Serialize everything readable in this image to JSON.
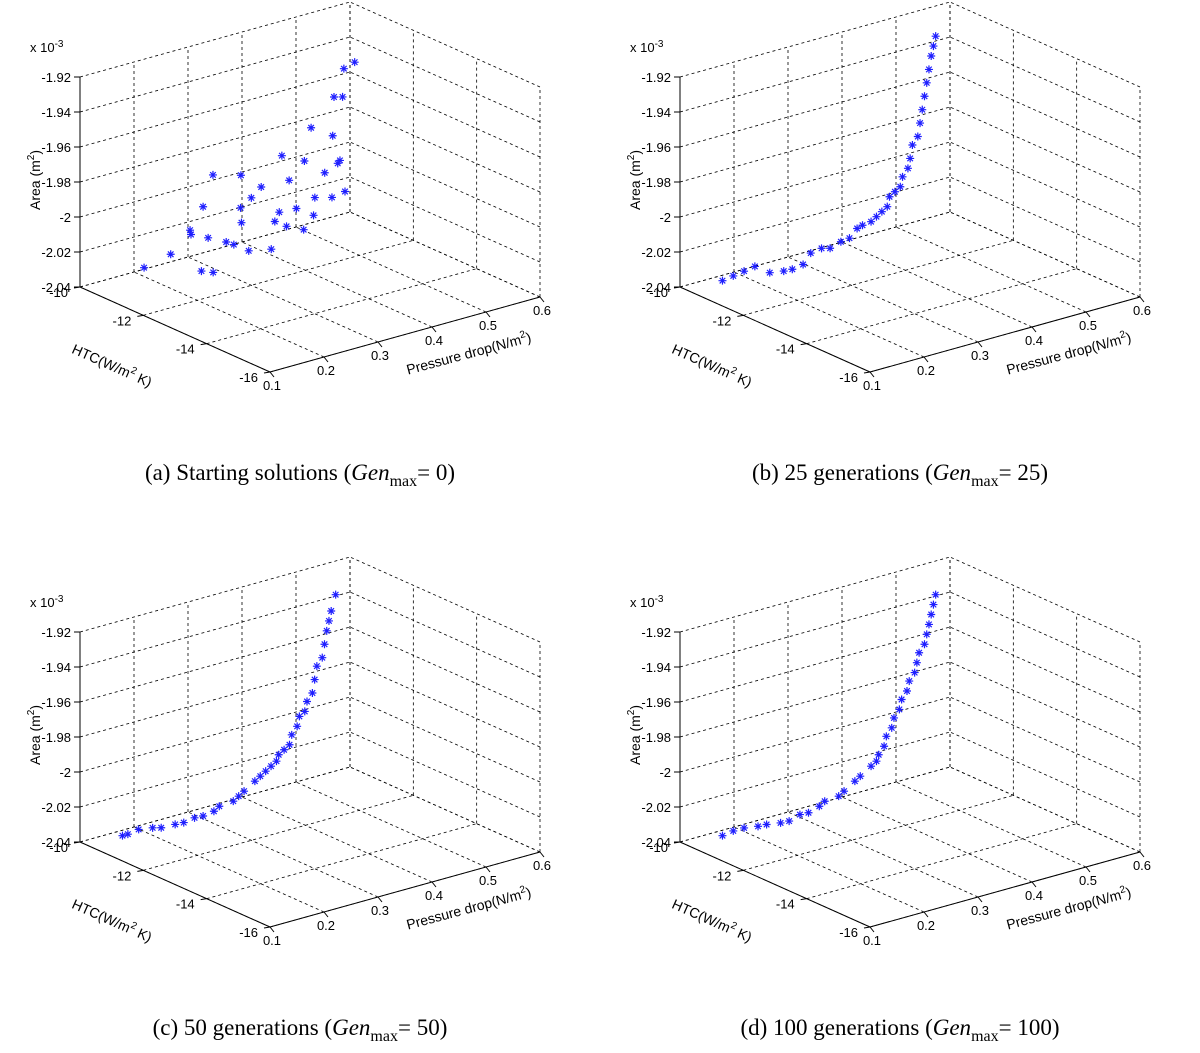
{
  "chart_data": [
    {
      "type": "scatter",
      "caption": {
        "prefix": "(a) Starting solutions (",
        "gen": "Gen",
        "sub": "max",
        "suffix": "= 0)"
      },
      "exponent_label": "x 10",
      "exponent_power": "-3",
      "xlabel": "Pressure drop(N/m",
      "xlabel_sup": "2",
      "xlabel_end": ")",
      "ylabel": "HTC(W/m",
      "ylabel_sup": "2",
      "ylabel_end": " K)",
      "zlabel": "Area (m",
      "zlabel_sup": "2",
      "zlabel_end": ")",
      "x_ticks": [
        "0.1",
        "0.2",
        "0.3",
        "0.4",
        "0.5",
        "0.6"
      ],
      "y_ticks": [
        "-10",
        "-12",
        "-14",
        "-16"
      ],
      "z_ticks": [
        "-1.92",
        "-1.94",
        "-1.96",
        "-1.98",
        "-2",
        "-2.02",
        "-2.04"
      ],
      "xlim": [
        0.1,
        0.6
      ],
      "ylim": [
        -16,
        -10
      ],
      "zlim": [
        -2.04,
        -1.92
      ],
      "grid": true,
      "points": [
        [
          0.16,
          -11.0,
          -2.026
        ],
        [
          0.18,
          -11.5,
          -2.016
        ],
        [
          0.19,
          -12.3,
          -2.02
        ],
        [
          0.2,
          -12.5,
          -2.02
        ],
        [
          0.2,
          -11.8,
          -2.004
        ],
        [
          0.21,
          -11.6,
          -2.004
        ],
        [
          0.22,
          -12.0,
          -2.006
        ],
        [
          0.23,
          -12.4,
          -2.006
        ],
        [
          0.24,
          -11.5,
          -1.994
        ],
        [
          0.25,
          -12.3,
          -2.01
        ],
        [
          0.26,
          -12.6,
          -2.012
        ],
        [
          0.27,
          -12.2,
          -2.0
        ],
        [
          0.27,
          -11.3,
          -1.98
        ],
        [
          0.28,
          -12.0,
          -1.994
        ],
        [
          0.29,
          -12.8,
          -2.012
        ],
        [
          0.3,
          -12.0,
          -1.99
        ],
        [
          0.31,
          -11.5,
          -1.982
        ],
        [
          0.32,
          -12.4,
          -2.002
        ],
        [
          0.33,
          -12.6,
          -2.004
        ],
        [
          0.33,
          -11.8,
          -1.988
        ],
        [
          0.34,
          -12.2,
          -2.0
        ],
        [
          0.35,
          -12.8,
          -2.006
        ],
        [
          0.36,
          -12.4,
          -1.998
        ],
        [
          0.37,
          -12.0,
          -1.986
        ],
        [
          0.38,
          -11.6,
          -1.976
        ],
        [
          0.38,
          -12.6,
          -2.002
        ],
        [
          0.4,
          -12.3,
          -1.996
        ],
        [
          0.41,
          -11.8,
          -1.98
        ],
        [
          0.42,
          -12.5,
          -1.996
        ],
        [
          0.43,
          -12.1,
          -1.986
        ],
        [
          0.44,
          -11.5,
          -1.966
        ],
        [
          0.45,
          -12.4,
          -1.996
        ],
        [
          0.46,
          -12.0,
          -1.984
        ],
        [
          0.47,
          -11.9,
          -1.984
        ],
        [
          0.48,
          -11.5,
          -1.974
        ],
        [
          0.5,
          -11.2,
          -1.956
        ],
        [
          0.51,
          -11.3,
          -1.956
        ],
        [
          0.53,
          -11.0,
          -1.944
        ],
        [
          0.55,
          -11.0,
          -1.942
        ]
      ]
    },
    {
      "type": "scatter",
      "caption": {
        "prefix": "(b) 25 generations (",
        "gen": "Gen",
        "sub": "max",
        "suffix": "= 25)"
      },
      "exponent_label": "x 10",
      "exponent_power": "-3",
      "xlabel": "Pressure drop(N/m",
      "xlabel_sup": "2",
      "xlabel_end": ")",
      "ylabel": "HTC(W/m",
      "ylabel_sup": "2",
      "ylabel_end": " K)",
      "zlabel": "Area (m",
      "zlabel_sup": "2",
      "zlabel_end": ")",
      "x_ticks": [
        "0.1",
        "0.2",
        "0.3",
        "0.4",
        "0.5",
        "0.6"
      ],
      "y_ticks": [
        "-10",
        "-12",
        "-14",
        "-16"
      ],
      "z_ticks": [
        "-1.92",
        "-1.94",
        "-1.96",
        "-1.98",
        "-2",
        "-2.02",
        "-2.04"
      ],
      "xlim": [
        0.1,
        0.6
      ],
      "ylim": [
        -16,
        -10
      ],
      "zlim": [
        -2.04,
        -1.92
      ],
      "grid": true,
      "points": [
        [
          0.12,
          -11.0,
          -2.03
        ],
        [
          0.14,
          -11.0,
          -2.029
        ],
        [
          0.16,
          -11.0,
          -2.028
        ],
        [
          0.18,
          -11.0,
          -2.027
        ],
        [
          0.19,
          -11.3,
          -2.029
        ],
        [
          0.21,
          -11.4,
          -2.029
        ],
        [
          0.22,
          -11.5,
          -2.028
        ],
        [
          0.24,
          -11.5,
          -2.027
        ],
        [
          0.26,
          -11.4,
          -2.023
        ],
        [
          0.28,
          -11.4,
          -2.022
        ],
        [
          0.29,
          -11.5,
          -2.022
        ],
        [
          0.31,
          -11.5,
          -2.02
        ],
        [
          0.32,
          -11.6,
          -2.018
        ],
        [
          0.34,
          -11.5,
          -2.015
        ],
        [
          0.35,
          -11.5,
          -2.014
        ],
        [
          0.36,
          -11.6,
          -2.012
        ],
        [
          0.37,
          -11.6,
          -2.01
        ],
        [
          0.38,
          -11.6,
          -2.008
        ],
        [
          0.39,
          -11.6,
          -2.006
        ],
        [
          0.4,
          -11.5,
          -2.002
        ],
        [
          0.41,
          -11.5,
          -2.0
        ],
        [
          0.42,
          -11.5,
          -1.998
        ],
        [
          0.43,
          -11.4,
          -1.994
        ],
        [
          0.44,
          -11.4,
          -1.99
        ],
        [
          0.45,
          -11.3,
          -1.986
        ],
        [
          0.46,
          -11.2,
          -1.98
        ],
        [
          0.47,
          -11.2,
          -1.976
        ],
        [
          0.48,
          -11.1,
          -1.97
        ],
        [
          0.49,
          -11.0,
          -1.964
        ],
        [
          0.5,
          -10.9,
          -1.958
        ],
        [
          0.51,
          -10.8,
          -1.952
        ],
        [
          0.52,
          -10.7,
          -1.946
        ],
        [
          0.53,
          -10.6,
          -1.94
        ],
        [
          0.54,
          -10.5,
          -1.936
        ],
        [
          0.55,
          -10.4,
          -1.932
        ]
      ]
    },
    {
      "type": "scatter",
      "caption": {
        "prefix": "(c) 50 generations (",
        "gen": "Gen",
        "sub": "max",
        "suffix": "= 50)"
      },
      "exponent_label": "x 10",
      "exponent_power": "-3",
      "xlabel": "Pressure drop(N/m",
      "xlabel_sup": "2",
      "xlabel_end": ")",
      "ylabel": "HTC(W/m",
      "ylabel_sup": "2",
      "ylabel_end": " K)",
      "zlabel": "Area (m",
      "zlabel_sup": "2",
      "zlabel_end": ")",
      "x_ticks": [
        "0.1",
        "0.2",
        "0.3",
        "0.4",
        "0.5",
        "0.6"
      ],
      "y_ticks": [
        "-10",
        "-12",
        "-14",
        "-16"
      ],
      "z_ticks": [
        "-1.92",
        "-1.94",
        "-1.96",
        "-1.98",
        "-2",
        "-2.02",
        "-2.04"
      ],
      "xlim": [
        0.1,
        0.6
      ],
      "ylim": [
        -16,
        -10
      ],
      "zlim": [
        -2.04,
        -1.92
      ],
      "grid": true,
      "points": [
        [
          0.12,
          -11.0,
          -2.03
        ],
        [
          0.13,
          -11.0,
          -2.03
        ],
        [
          0.15,
          -11.0,
          -2.029
        ],
        [
          0.17,
          -11.1,
          -2.029
        ],
        [
          0.18,
          -11.2,
          -2.029
        ],
        [
          0.2,
          -11.3,
          -2.028
        ],
        [
          0.21,
          -11.4,
          -2.027
        ],
        [
          0.23,
          -11.4,
          -2.026
        ],
        [
          0.24,
          -11.5,
          -2.025
        ],
        [
          0.26,
          -11.5,
          -2.024
        ],
        [
          0.27,
          -11.5,
          -2.022
        ],
        [
          0.29,
          -11.6,
          -2.02
        ],
        [
          0.3,
          -11.6,
          -2.018
        ],
        [
          0.31,
          -11.6,
          -2.016
        ],
        [
          0.33,
          -11.6,
          -2.012
        ],
        [
          0.34,
          -11.6,
          -2.01
        ],
        [
          0.35,
          -11.6,
          -2.008
        ],
        [
          0.36,
          -11.6,
          -2.006
        ],
        [
          0.37,
          -11.6,
          -2.004
        ],
        [
          0.38,
          -11.5,
          -2.002
        ],
        [
          0.39,
          -11.5,
          -2.0
        ],
        [
          0.4,
          -11.5,
          -1.998
        ],
        [
          0.41,
          -11.4,
          -1.994
        ],
        [
          0.42,
          -11.4,
          -1.99
        ],
        [
          0.43,
          -11.3,
          -1.986
        ],
        [
          0.44,
          -11.3,
          -1.984
        ],
        [
          0.45,
          -11.2,
          -1.98
        ],
        [
          0.46,
          -11.2,
          -1.976
        ],
        [
          0.47,
          -11.1,
          -1.97
        ],
        [
          0.48,
          -11.0,
          -1.964
        ],
        [
          0.49,
          -11.0,
          -1.96
        ],
        [
          0.5,
          -10.9,
          -1.954
        ],
        [
          0.51,
          -10.8,
          -1.948
        ],
        [
          0.52,
          -10.7,
          -1.944
        ],
        [
          0.53,
          -10.6,
          -1.94
        ],
        [
          0.55,
          -10.4,
          -1.934
        ]
      ]
    },
    {
      "type": "scatter",
      "caption": {
        "prefix": "(d) 100 generations (",
        "gen": "Gen",
        "sub": "max",
        "suffix": "= 100)"
      },
      "exponent_label": "x 10",
      "exponent_power": "-3",
      "xlabel": "Pressure drop(N/m",
      "xlabel_sup": "2",
      "xlabel_end": ")",
      "ylabel": "HTC(W/m",
      "ylabel_sup": "2",
      "ylabel_end": " K)",
      "zlabel": "Area (m",
      "zlabel_sup": "2",
      "zlabel_end": ")",
      "x_ticks": [
        "0.1",
        "0.2",
        "0.3",
        "0.4",
        "0.5",
        "0.6"
      ],
      "y_ticks": [
        "-10",
        "-12",
        "-14",
        "-16"
      ],
      "z_ticks": [
        "-1.92",
        "-1.94",
        "-1.96",
        "-1.98",
        "-2",
        "-2.02",
        "-2.04"
      ],
      "xlim": [
        0.1,
        0.6
      ],
      "ylim": [
        -16,
        -10
      ],
      "zlim": [
        -2.04,
        -1.92
      ],
      "grid": true,
      "points": [
        [
          0.12,
          -11.0,
          -2.03
        ],
        [
          0.14,
          -11.0,
          -2.029
        ],
        [
          0.16,
          -11.0,
          -2.029
        ],
        [
          0.18,
          -11.1,
          -2.029
        ],
        [
          0.19,
          -11.2,
          -2.028
        ],
        [
          0.21,
          -11.3,
          -2.028
        ],
        [
          0.22,
          -11.4,
          -2.027
        ],
        [
          0.24,
          -11.4,
          -2.025
        ],
        [
          0.25,
          -11.5,
          -2.024
        ],
        [
          0.27,
          -11.5,
          -2.022
        ],
        [
          0.28,
          -11.5,
          -2.02
        ],
        [
          0.3,
          -11.6,
          -2.018
        ],
        [
          0.31,
          -11.6,
          -2.016
        ],
        [
          0.33,
          -11.6,
          -2.012
        ],
        [
          0.34,
          -11.6,
          -2.01
        ],
        [
          0.36,
          -11.6,
          -2.006
        ],
        [
          0.37,
          -11.6,
          -2.004
        ],
        [
          0.38,
          -11.5,
          -2.002
        ],
        [
          0.39,
          -11.5,
          -1.998
        ],
        [
          0.4,
          -11.4,
          -1.994
        ],
        [
          0.41,
          -11.4,
          -1.99
        ],
        [
          0.42,
          -11.3,
          -1.986
        ],
        [
          0.43,
          -11.3,
          -1.982
        ],
        [
          0.44,
          -11.2,
          -1.978
        ],
        [
          0.45,
          -11.2,
          -1.974
        ],
        [
          0.46,
          -11.1,
          -1.97
        ],
        [
          0.47,
          -11.1,
          -1.966
        ],
        [
          0.48,
          -11.0,
          -1.962
        ],
        [
          0.49,
          -10.9,
          -1.958
        ],
        [
          0.5,
          -10.9,
          -1.954
        ],
        [
          0.51,
          -10.8,
          -1.95
        ],
        [
          0.52,
          -10.7,
          -1.946
        ],
        [
          0.53,
          -10.6,
          -1.942
        ],
        [
          0.54,
          -10.5,
          -1.938
        ],
        [
          0.55,
          -10.4,
          -1.934
        ]
      ]
    }
  ]
}
